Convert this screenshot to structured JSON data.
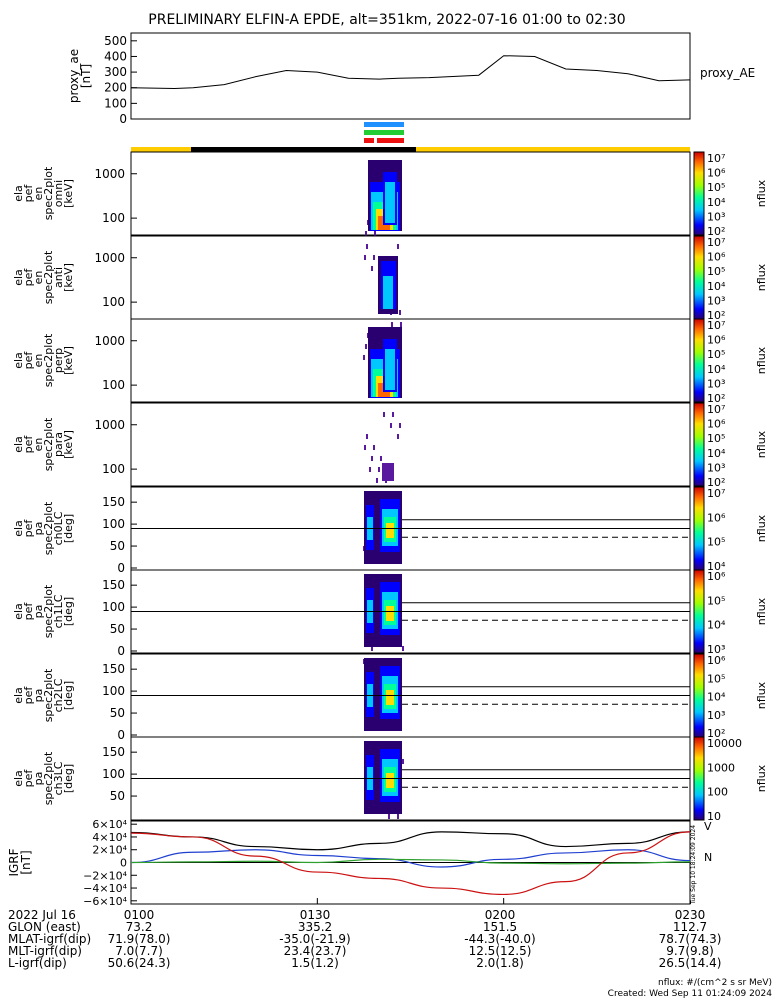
{
  "title": "PRELIMINARY ELFIN-A EPDE, alt=351km, 2022-07-16 01:00 to 02:30",
  "colors": {
    "ae": "#000000",
    "bar_blue": "#1e90ff",
    "bar_green": "#22cc33",
    "bar_red": "#ee1111",
    "bar_yellow": "#ffcc00",
    "bar_black": "#000000",
    "igrf_black": "#000000",
    "igrf_blue": "#1f3fd0",
    "igrf_green": "#2da02d",
    "igrf_red": "#cc1111"
  },
  "chart_data": [
    {
      "type": "line",
      "panel": "proxy_ae",
      "ylabel": [
        "proxy_ae",
        "[nT]"
      ],
      "legend": "proxy_AE",
      "ylim": [
        0,
        550
      ],
      "yticks": [
        "500",
        "400",
        "300",
        "200",
        "100",
        "0"
      ],
      "x_minutes": [
        0,
        10,
        20,
        30,
        40,
        50,
        55,
        60,
        70,
        75,
        80,
        90,
        100
      ],
      "x": [
        60,
        67,
        70,
        75,
        80,
        85,
        90,
        95,
        100,
        103,
        108,
        116,
        120,
        125,
        130,
        135,
        140,
        145,
        150
      ],
      "y": [
        200,
        195,
        200,
        220,
        270,
        310,
        300,
        260,
        255,
        260,
        265,
        280,
        405,
        400,
        320,
        310,
        290,
        245,
        250
      ]
    },
    {
      "type": "heatmap",
      "panel": "spec omni",
      "ylabel": [
        "ela",
        "pef",
        "en",
        "spec2plot",
        "omni",
        "[keV]"
      ],
      "yticks": [
        "1000",
        "100"
      ],
      "colorbar": [
        "10⁷",
        "10⁶",
        "10⁵",
        "10⁴",
        "10³",
        "10²"
      ],
      "zlabel": "nflux",
      "style": "full"
    },
    {
      "type": "heatmap",
      "panel": "spec anti",
      "ylabel": [
        "ela",
        "pef",
        "en",
        "spec2plot",
        "anti",
        "[keV]"
      ],
      "yticks": [
        "1000",
        "100"
      ],
      "colorbar": [
        "10⁷",
        "10⁶",
        "10⁵",
        "10⁴",
        "10³",
        "10²"
      ],
      "zlabel": "nflux",
      "style": "weak"
    },
    {
      "type": "heatmap",
      "panel": "spec perp",
      "ylabel": [
        "ela",
        "pef",
        "en",
        "spec2plot",
        "perp",
        "[keV]"
      ],
      "yticks": [
        "1000",
        "100"
      ],
      "colorbar": [
        "10⁷",
        "10⁶",
        "10⁵",
        "10⁴",
        "10³",
        "10²"
      ],
      "zlabel": "nflux",
      "style": "full"
    },
    {
      "type": "heatmap",
      "panel": "spec para",
      "ylabel": [
        "ela",
        "pef",
        "en",
        "spec2plot",
        "para",
        "[keV]"
      ],
      "yticks": [
        "1000",
        "100"
      ],
      "colorbar": [
        "10⁷",
        "10⁶",
        "10⁵",
        "10⁴",
        "10³",
        "10²"
      ],
      "zlabel": "nflux",
      "style": "sparse"
    },
    {
      "type": "heatmap",
      "panel": "pa ch0LC",
      "ylabel": [
        "ela",
        "pef",
        "pa",
        "spec2plot",
        "ch0LC",
        "[deg]"
      ],
      "yticks": [
        "150",
        "100",
        "50",
        "0"
      ],
      "colorbar": [
        "10⁷",
        "10⁶",
        "10⁵",
        "10⁴"
      ],
      "zlabel": "nflux",
      "style": "pa"
    },
    {
      "type": "heatmap",
      "panel": "pa ch1LC",
      "ylabel": [
        "ela",
        "pef",
        "pa",
        "spec2plot",
        "ch1LC",
        "[deg]"
      ],
      "yticks": [
        "150",
        "100",
        "50",
        "0"
      ],
      "colorbar": [
        "10⁶",
        "10⁵",
        "10⁴",
        "10³"
      ],
      "zlabel": "nflux",
      "style": "pa"
    },
    {
      "type": "heatmap",
      "panel": "pa ch2LC",
      "ylabel": [
        "ela",
        "pef",
        "pa",
        "spec2plot",
        "ch2LC",
        "[deg]"
      ],
      "yticks": [
        "150",
        "100",
        "50",
        "0"
      ],
      "colorbar": [
        "10⁶",
        "10⁵",
        "10⁴",
        "10³",
        "10²"
      ],
      "zlabel": "nflux",
      "style": "pa"
    },
    {
      "type": "heatmap",
      "panel": "pa ch3LC",
      "ylabel": [
        "ela",
        "pef",
        "pa",
        "spec2plot",
        "ch3LC",
        "[deg]"
      ],
      "yticks": [
        "150",
        "100",
        "50"
      ],
      "colorbar": [
        "10000",
        "1000",
        "100",
        "10"
      ],
      "zlabel": "nflux",
      "style": "pa"
    },
    {
      "type": "line",
      "panel": "IGRF",
      "ylabel": [
        "IGRF",
        "[nT]"
      ],
      "yticks": [
        "6×10⁴",
        "4×10⁴",
        "2×10⁴",
        "0",
        "−2×10⁴",
        "−4×10⁴",
        "−6×10⁴"
      ],
      "ylim": [
        -65000,
        65000
      ],
      "x": [
        60,
        70,
        80,
        90,
        100,
        110,
        120,
        130,
        140,
        150
      ],
      "series": [
        {
          "key": "black",
          "values": [
            47000,
            40000,
            25000,
            20000,
            30000,
            48000,
            45000,
            25000,
            30000,
            48000
          ]
        },
        {
          "key": "blue",
          "values": [
            0,
            16000,
            20000,
            11000,
            6000,
            -7000,
            5000,
            15000,
            20000,
            3000
          ]
        },
        {
          "key": "green",
          "values": [
            0,
            1000,
            2000,
            0,
            5000,
            4000,
            -1000,
            -2000,
            -1000,
            1000
          ]
        },
        {
          "key": "red",
          "values": [
            46000,
            40000,
            10000,
            -15000,
            -25000,
            -40000,
            -50000,
            -30000,
            15000,
            48000
          ]
        }
      ],
      "side_labels": [
        "V",
        "N"
      ]
    }
  ],
  "footer": {
    "rows": [
      [
        "2022 Jul 16",
        "0100",
        "0130",
        "0200",
        "0230"
      ],
      [
        "GLON (east)",
        "73.2",
        "335.2",
        "151.5",
        "112.7"
      ],
      [
        "MLAT-igrf(dip)",
        "71.9(78.0)",
        "-35.0(-21.9)",
        "-44.3(-40.0)",
        "78.7(74.3)"
      ],
      [
        "MLT-igrf(dip)",
        "7.0(7.7)",
        "23.4(23.7)",
        "12.5(12.5)",
        "9.7(9.8)"
      ],
      [
        "L-igrf(dip)",
        "50.6(24.3)",
        "1.5(1.2)",
        "2.0(1.8)",
        "26.5(14.4)"
      ]
    ],
    "units": "nflux: #/(cm^2 s sr MeV)",
    "created": "Created: Wed Sep 11 01:24:09 2024",
    "stamp": "Tue Sep 10 18:24:09 2024"
  }
}
